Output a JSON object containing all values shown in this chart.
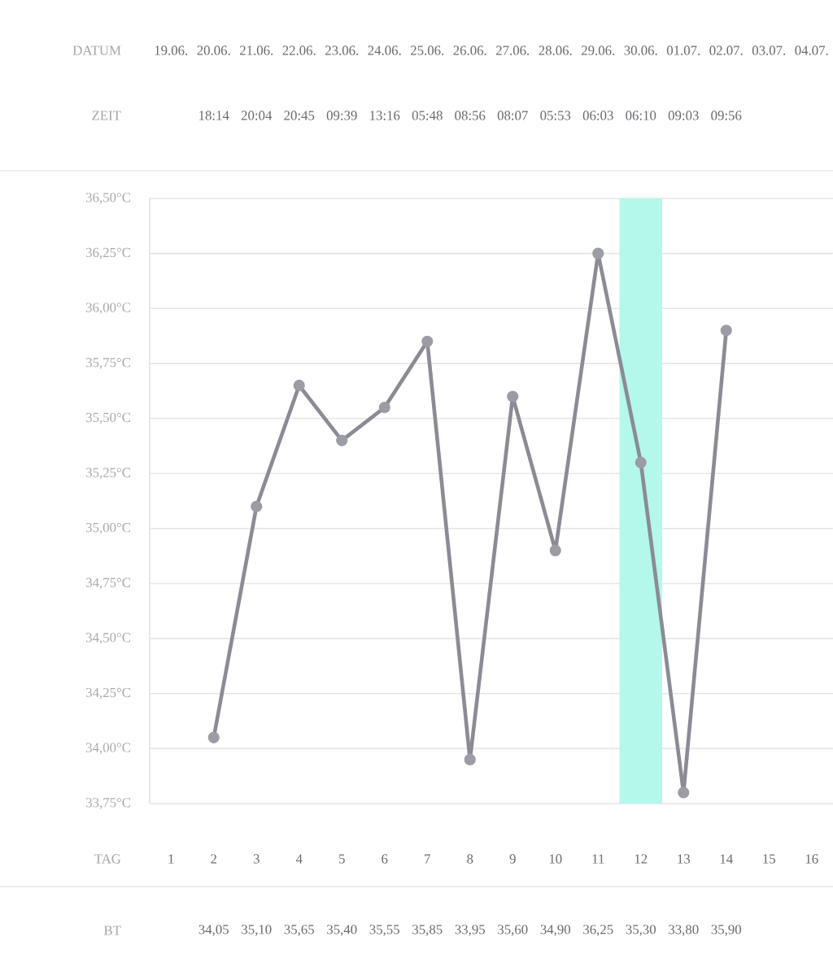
{
  "chart_data": {
    "type": "line",
    "x": [
      2,
      3,
      4,
      5,
      6,
      7,
      8,
      9,
      10,
      11,
      12,
      13,
      14
    ],
    "xlim": [
      0.5,
      16.5
    ],
    "xticks": [
      1,
      2,
      3,
      4,
      5,
      6,
      7,
      8,
      9,
      10,
      11,
      12,
      13,
      14,
      15,
      16
    ],
    "xlabel": "TAG",
    "ylim": [
      33.75,
      36.5
    ],
    "yticks": [
      {
        "value": 33.75,
        "label": "33,75°C"
      },
      {
        "value": 34.0,
        "label": "34,00°C"
      },
      {
        "value": 34.25,
        "label": "34,25°C"
      },
      {
        "value": 34.5,
        "label": "34,50°C"
      },
      {
        "value": 34.75,
        "label": "34,75°C"
      },
      {
        "value": 35.0,
        "label": "35,00°C"
      },
      {
        "value": 35.25,
        "label": "35,25°C"
      },
      {
        "value": 35.5,
        "label": "35,50°C"
      },
      {
        "value": 35.75,
        "label": "35,75°C"
      },
      {
        "value": 36.0,
        "label": "36,00°C"
      },
      {
        "value": 36.25,
        "label": "36,25°C"
      },
      {
        "value": 36.5,
        "label": "36,50°C"
      }
    ],
    "series": [
      {
        "color": "#8a8b95",
        "values": [
          34.05,
          35.1,
          35.65,
          35.4,
          35.55,
          35.85,
          33.95,
          35.6,
          34.9,
          36.25,
          35.3,
          33.8,
          35.9
        ]
      }
    ],
    "marker": "circle",
    "grid": "y",
    "bands": [
      {
        "axis": "x",
        "from": 11.5,
        "to": 12.5,
        "color": "#b4f7eb"
      }
    ],
    "annotations": [
      "DATUM",
      "19.06.",
      "20.06.",
      "21.06.",
      "22.06.",
      "23.06.",
      "24.06.",
      "25.06.",
      "26.06.",
      "27.06.",
      "28.06.",
      "29.06.",
      "30.06.",
      "01.07.",
      "02.07.",
      "03.07.",
      "04.07.",
      "ZEIT",
      "18:14",
      "20:04",
      "20:45",
      "09:39",
      "13:16",
      "05:48",
      "08:56",
      "08:07",
      "05:53",
      "06:03",
      "06:10",
      "09:03",
      "09:56",
      "BT",
      "34,05",
      "35,10",
      "35,65",
      "35,40",
      "35,55",
      "35,85",
      "33,95",
      "35,60",
      "34,90",
      "36,25",
      "35,30",
      "33,80",
      "35,90"
    ]
  }
}
